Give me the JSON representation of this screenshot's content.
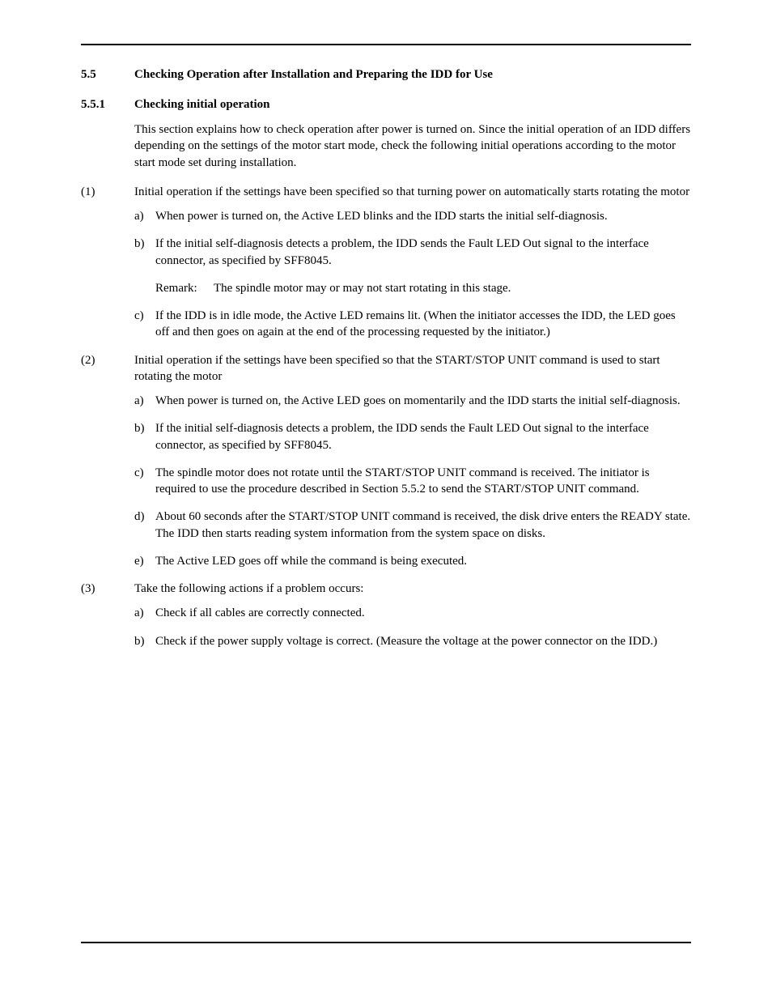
{
  "section": {
    "number": "5.5",
    "title": "Checking Operation after Installation and Preparing the IDD for Use"
  },
  "subsection": {
    "number": "5.5.1",
    "title": "Checking initial operation",
    "intro": "This section explains how to check operation after power is turned on.  Since the initial operation of an IDD differs depending on the settings of the motor start mode, check the following initial operations according to the motor start mode set during installation."
  },
  "items": {
    "n1": {
      "label": "(1)",
      "text": "Initial operation if the settings have been specified so that turning power on automatically starts rotating the motor",
      "a": {
        "label": "a)",
        "text": "When power is turned on, the Active LED blinks and the IDD starts the initial self-diagnosis."
      },
      "b": {
        "label": "b)",
        "text": "If the initial self-diagnosis detects a problem, the IDD sends the Fault LED Out signal to the interface connector, as specified by SFF8045."
      },
      "remark": {
        "label": "Remark:",
        "text": "The spindle motor may or may not start rotating in this stage."
      },
      "c": {
        "label": "c)",
        "text": "If the IDD is in idle mode, the Active LED remains lit.  (When the initiator accesses the IDD, the LED goes off and then goes on again at the end of the processing requested by the initiator.)"
      }
    },
    "n2": {
      "label": "(2)",
      "text": "Initial operation if the settings have been specified so that the START/STOP UNIT command is used to start rotating the motor",
      "a": {
        "label": "a)",
        "text": "When power is turned on, the Active LED goes on momentarily and the IDD starts the initial self-diagnosis."
      },
      "b": {
        "label": "b)",
        "text": "If the initial self-diagnosis detects a problem, the IDD sends the Fault LED Out signal to the interface connector, as specified by SFF8045."
      },
      "c": {
        "label": "c)",
        "text": "The spindle motor does not rotate until the START/STOP UNIT command is received.  The initiator is required to use the procedure described in Section 5.5.2 to send the START/STOP UNIT command."
      },
      "d": {
        "label": "d)",
        "text": "About 60 seconds after the START/STOP UNIT command is received, the disk drive enters the READY state.  The IDD then starts reading system information from the system space on disks."
      },
      "e": {
        "label": "e)",
        "text": "The Active LED goes off while the command is being executed."
      }
    },
    "n3": {
      "label": "(3)",
      "text": "Take the following actions if a problem occurs:",
      "a": {
        "label": "a)",
        "text": "Check if all cables are correctly connected."
      },
      "b": {
        "label": "b)",
        "text": "Check if the power supply voltage is correct.  (Measure the voltage at the power connector on the IDD.)"
      }
    }
  }
}
